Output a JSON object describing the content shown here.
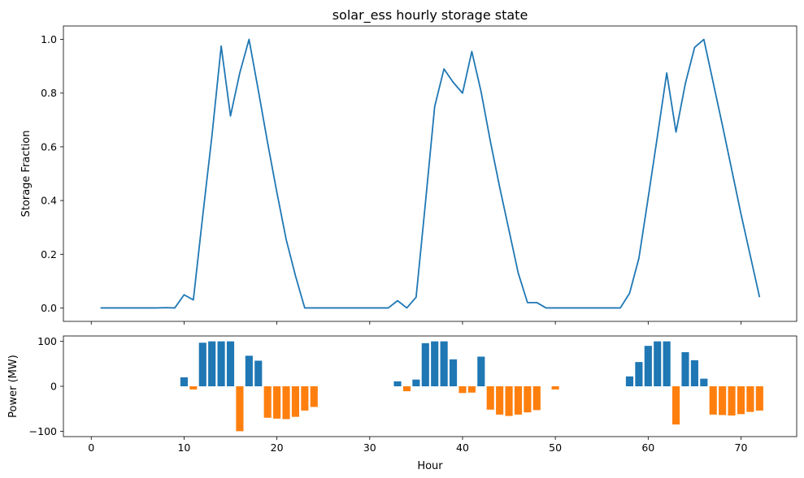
{
  "chart_data": [
    {
      "type": "line",
      "title": "solar_ess hourly storage state",
      "xlabel": "",
      "ylabel": "Storage Fraction",
      "xlim": [
        -3,
        76
      ],
      "ylim": [
        -0.05,
        1.05
      ],
      "x_ticks": [
        0,
        10,
        20,
        30,
        40,
        50,
        60,
        70
      ],
      "x_tick_labels_visible": false,
      "y_ticks": [
        0.0,
        0.2,
        0.4,
        0.6,
        0.8,
        1.0
      ],
      "y_tick_labels": [
        "0.0",
        "0.2",
        "0.4",
        "0.6",
        "0.8",
        "1.0"
      ],
      "grid": false,
      "color": "#1f77b4",
      "x": [
        1,
        2,
        3,
        4,
        5,
        6,
        7,
        8,
        9,
        10,
        11,
        12,
        13,
        14,
        15,
        16,
        17,
        18,
        19,
        20,
        21,
        22,
        23,
        24,
        25,
        26,
        27,
        28,
        29,
        30,
        31,
        32,
        33,
        34,
        35,
        36,
        37,
        38,
        39,
        40,
        41,
        42,
        43,
        44,
        45,
        46,
        47,
        48,
        49,
        50,
        51,
        52,
        53,
        54,
        55,
        56,
        57,
        58,
        59,
        60,
        61,
        62,
        63,
        64,
        65,
        66,
        67,
        68,
        69,
        70,
        71,
        72
      ],
      "y": [
        0.0,
        0.0,
        0.0,
        0.0,
        0.0,
        0.0,
        0.0,
        0.001,
        0.0,
        0.049,
        0.03,
        0.34,
        0.64,
        0.975,
        0.715,
        0.875,
        1.0,
        0.81,
        0.615,
        0.43,
        0.255,
        0.12,
        0.0,
        0.0,
        0.0,
        0.0,
        0.0,
        0.0,
        0.0,
        0.0,
        0.0,
        0.0,
        0.027,
        0.0,
        0.04,
        0.39,
        0.75,
        0.89,
        0.84,
        0.8,
        0.955,
        0.805,
        0.62,
        0.45,
        0.29,
        0.13,
        0.02,
        0.02,
        0.0,
        0.0,
        0.0,
        0.0,
        0.0,
        0.0,
        0.0,
        0.0,
        0.0,
        0.055,
        0.185,
        0.41,
        0.64,
        0.875,
        0.655,
        0.835,
        0.97,
        1.0,
        0.84,
        0.68,
        0.515,
        0.35,
        0.195,
        0.04
      ]
    },
    {
      "type": "bar",
      "title": "",
      "xlabel": "Hour",
      "ylabel": "Power (MW)",
      "xlim": [
        -3,
        76
      ],
      "ylim": [
        -112,
        112
      ],
      "x_ticks": [
        0,
        10,
        20,
        30,
        40,
        50,
        60,
        70
      ],
      "x_tick_labels": [
        "0",
        "10",
        "20",
        "30",
        "40",
        "50",
        "60",
        "70"
      ],
      "y_ticks": [
        -100,
        0,
        100
      ],
      "y_tick_labels": [
        "−100",
        "0",
        "100"
      ],
      "grid": false,
      "positive_color": "#1f77b4",
      "negative_color": "#ff7f0e",
      "x": [
        1,
        2,
        3,
        4,
        5,
        6,
        7,
        8,
        9,
        10,
        11,
        12,
        13,
        14,
        15,
        16,
        17,
        18,
        19,
        20,
        21,
        22,
        23,
        24,
        25,
        26,
        27,
        28,
        29,
        30,
        31,
        32,
        33,
        34,
        35,
        36,
        37,
        38,
        39,
        40,
        41,
        42,
        43,
        44,
        45,
        46,
        47,
        48,
        49,
        50,
        51,
        52,
        53,
        54,
        55,
        56,
        57,
        58,
        59,
        60,
        61,
        62,
        63,
        64,
        65,
        66,
        67,
        68,
        69,
        70,
        71,
        72
      ],
      "values": [
        0,
        0,
        0,
        0,
        0,
        0,
        0,
        0,
        0,
        20,
        -7,
        97,
        100,
        100,
        100,
        -100,
        68,
        57,
        -70,
        -72,
        -73,
        -68,
        -54,
        -46,
        0,
        0,
        0,
        0,
        0,
        0,
        0,
        0,
        11,
        -11,
        15,
        96,
        100,
        100,
        60,
        -15,
        -14,
        66,
        -52,
        -63,
        -66,
        -63,
        -58,
        -53,
        0,
        -7,
        0,
        0,
        0,
        0,
        0,
        0,
        0,
        22,
        54,
        90,
        100,
        100,
        -85,
        76,
        58,
        17,
        -63,
        -64,
        -65,
        -62,
        -57,
        -54
      ]
    }
  ]
}
